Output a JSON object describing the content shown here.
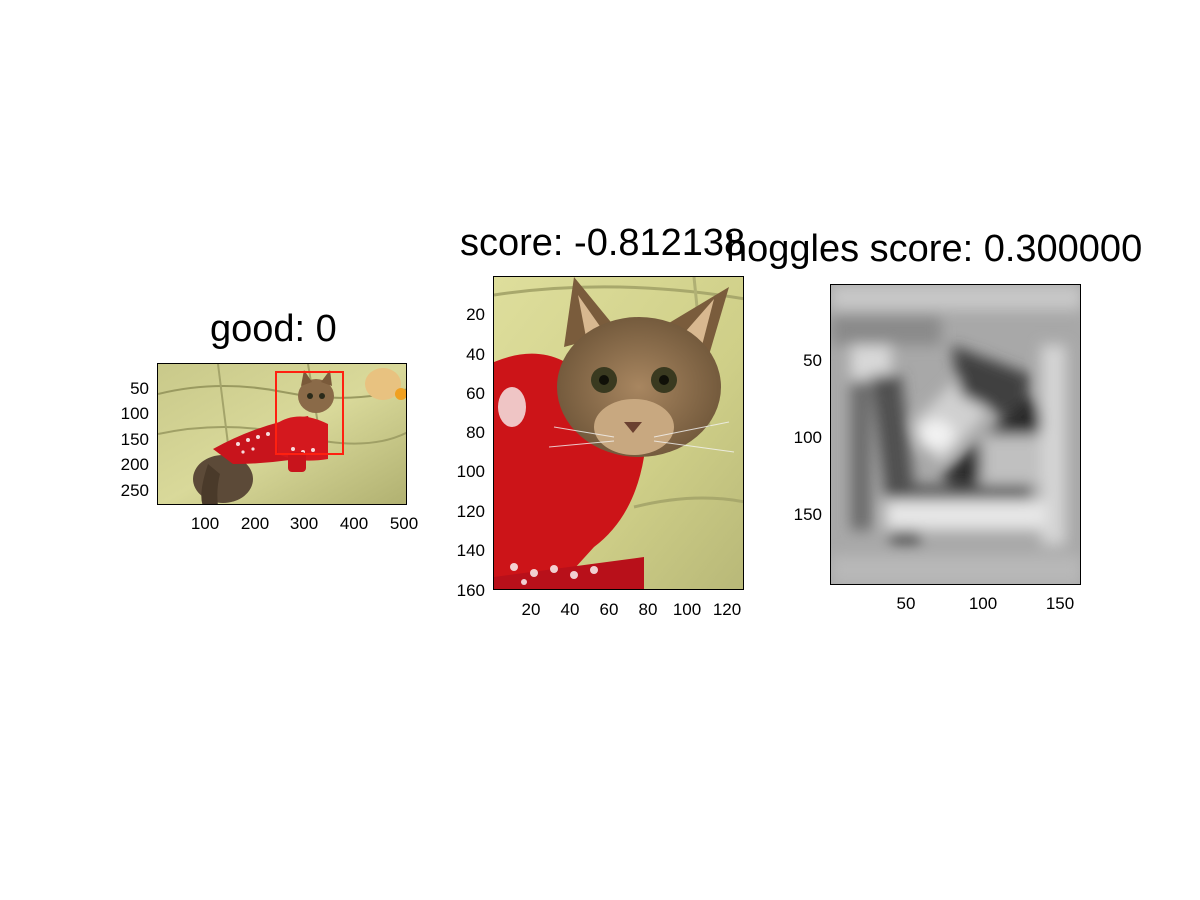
{
  "panels": [
    {
      "title": "good: 0",
      "image": "full photo of cat in red sweater on sofa with bounding box",
      "x_ticks": [
        "100",
        "200",
        "300",
        "400",
        "500"
      ],
      "y_ticks": [
        "50",
        "100",
        "150",
        "200",
        "250"
      ],
      "box_color": "#ff2010"
    },
    {
      "title": "score: -0.812138",
      "image": "cropped cat face in red sweater",
      "x_ticks": [
        "20",
        "40",
        "60",
        "80",
        "100",
        "120"
      ],
      "y_ticks": [
        "20",
        "40",
        "60",
        "80",
        "100",
        "120",
        "140",
        "160"
      ]
    },
    {
      "title": "hoggles score: 0.300000",
      "image": "grayscale hoggles inversion",
      "x_ticks": [
        "50",
        "100",
        "150"
      ],
      "y_ticks": [
        "50",
        "100",
        "150"
      ]
    }
  ]
}
